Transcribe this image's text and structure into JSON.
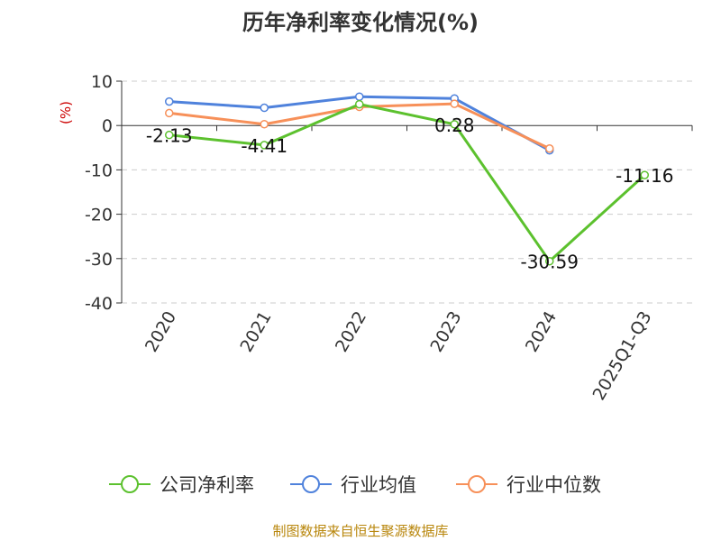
{
  "chart_data": {
    "type": "line",
    "title": "历年净利率变化情况(%)",
    "ylabel": "(%)",
    "ylim": [
      -40,
      10
    ],
    "yticks": [
      10,
      0,
      -10,
      -20,
      -30,
      -40
    ],
    "grid": true,
    "legend_position": "bottom",
    "categories": [
      "2020",
      "2021",
      "2022",
      "2023",
      "2024",
      "2025Q1-Q3"
    ],
    "series": [
      {
        "name": "公司净利率",
        "color": "#5cc12e",
        "values": [
          -2.13,
          -4.41,
          4.8,
          0.28,
          -30.59,
          -11.16
        ],
        "labels": [
          "-2.13",
          "-4.41",
          "",
          "0.28",
          "-30.59",
          "-11.16"
        ]
      },
      {
        "name": "行业均值",
        "color": "#4f82dc",
        "values": [
          5.4,
          4.0,
          6.5,
          6.1,
          -5.6,
          null
        ],
        "labels": [
          "",
          "",
          "",
          "",
          "",
          ""
        ]
      },
      {
        "name": "行业中位数",
        "color": "#f79059",
        "values": [
          2.8,
          0.3,
          4.2,
          4.9,
          -5.2,
          null
        ],
        "labels": [
          "",
          "",
          "",
          "",
          "",
          ""
        ]
      }
    ]
  },
  "footer": {
    "source": "制图数据来自恒生聚源数据库"
  }
}
